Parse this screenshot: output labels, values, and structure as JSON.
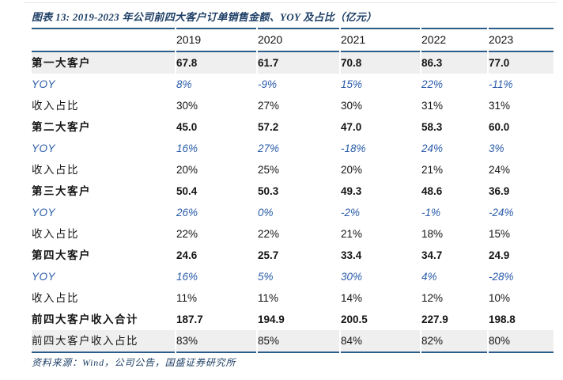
{
  "title": {
    "text": "图表 13:  2019-2023 年公司前四大客户订单销售金额、YOY 及占比（亿元）"
  },
  "table": {
    "label_column_header": "",
    "columns": [
      "2019",
      "2020",
      "2021",
      "2022",
      "2023"
    ],
    "rows": [
      {
        "label": "第一大客户",
        "style": "customer",
        "shaded": true,
        "values": [
          "67.8",
          "61.7",
          "70.8",
          "86.3",
          "77.0"
        ]
      },
      {
        "label": "YOY",
        "style": "yoy",
        "shaded": false,
        "values": [
          "8%",
          "-9%",
          "15%",
          "22%",
          "-11%"
        ]
      },
      {
        "label": "收入占比",
        "style": "share",
        "shaded": false,
        "values": [
          "30%",
          "27%",
          "30%",
          "31%",
          "31%"
        ]
      },
      {
        "label": "第二大客户",
        "style": "customer",
        "shaded": false,
        "values": [
          "45.0",
          "57.2",
          "47.0",
          "58.3",
          "60.0"
        ]
      },
      {
        "label": "YOY",
        "style": "yoy",
        "shaded": false,
        "values": [
          "16%",
          "27%",
          "-18%",
          "24%",
          "3%"
        ]
      },
      {
        "label": "收入占比",
        "style": "share",
        "shaded": false,
        "values": [
          "20%",
          "25%",
          "20%",
          "21%",
          "24%"
        ]
      },
      {
        "label": "第三大客户",
        "style": "customer",
        "shaded": false,
        "values": [
          "50.4",
          "50.3",
          "49.3",
          "48.6",
          "36.9"
        ]
      },
      {
        "label": "YOY",
        "style": "yoy",
        "shaded": false,
        "values": [
          "26%",
          "0%",
          "-2%",
          "-1%",
          "-24%"
        ]
      },
      {
        "label": "收入占比",
        "style": "share",
        "shaded": false,
        "values": [
          "22%",
          "22%",
          "21%",
          "18%",
          "15%"
        ]
      },
      {
        "label": "第四大客户",
        "style": "customer",
        "shaded": false,
        "values": [
          "24.6",
          "25.7",
          "33.4",
          "34.7",
          "24.9"
        ]
      },
      {
        "label": "YOY",
        "style": "yoy",
        "shaded": false,
        "values": [
          "16%",
          "5%",
          "30%",
          "4%",
          "-28%"
        ]
      },
      {
        "label": "收入占比",
        "style": "share",
        "shaded": false,
        "values": [
          "11%",
          "11%",
          "14%",
          "12%",
          "10%"
        ]
      },
      {
        "label": "前四大客户收入合计",
        "style": "customer",
        "shaded": false,
        "values": [
          "187.7",
          "194.9",
          "200.5",
          "227.9",
          "198.8"
        ]
      },
      {
        "label": "前四大客户收入占比",
        "style": "share",
        "shaded": true,
        "values": [
          "83%",
          "85%",
          "84%",
          "82%",
          "80%"
        ]
      }
    ]
  },
  "footer": {
    "source": "资料来源：Wind，公司公告，国盛证券研究所"
  },
  "colors": {
    "title_navy": "#1e3f66",
    "rule_navy": "#2e5c88",
    "yoy_blue": "#2a5caa",
    "shaded_row_bg": "#efefef",
    "body_text": "#141414"
  }
}
